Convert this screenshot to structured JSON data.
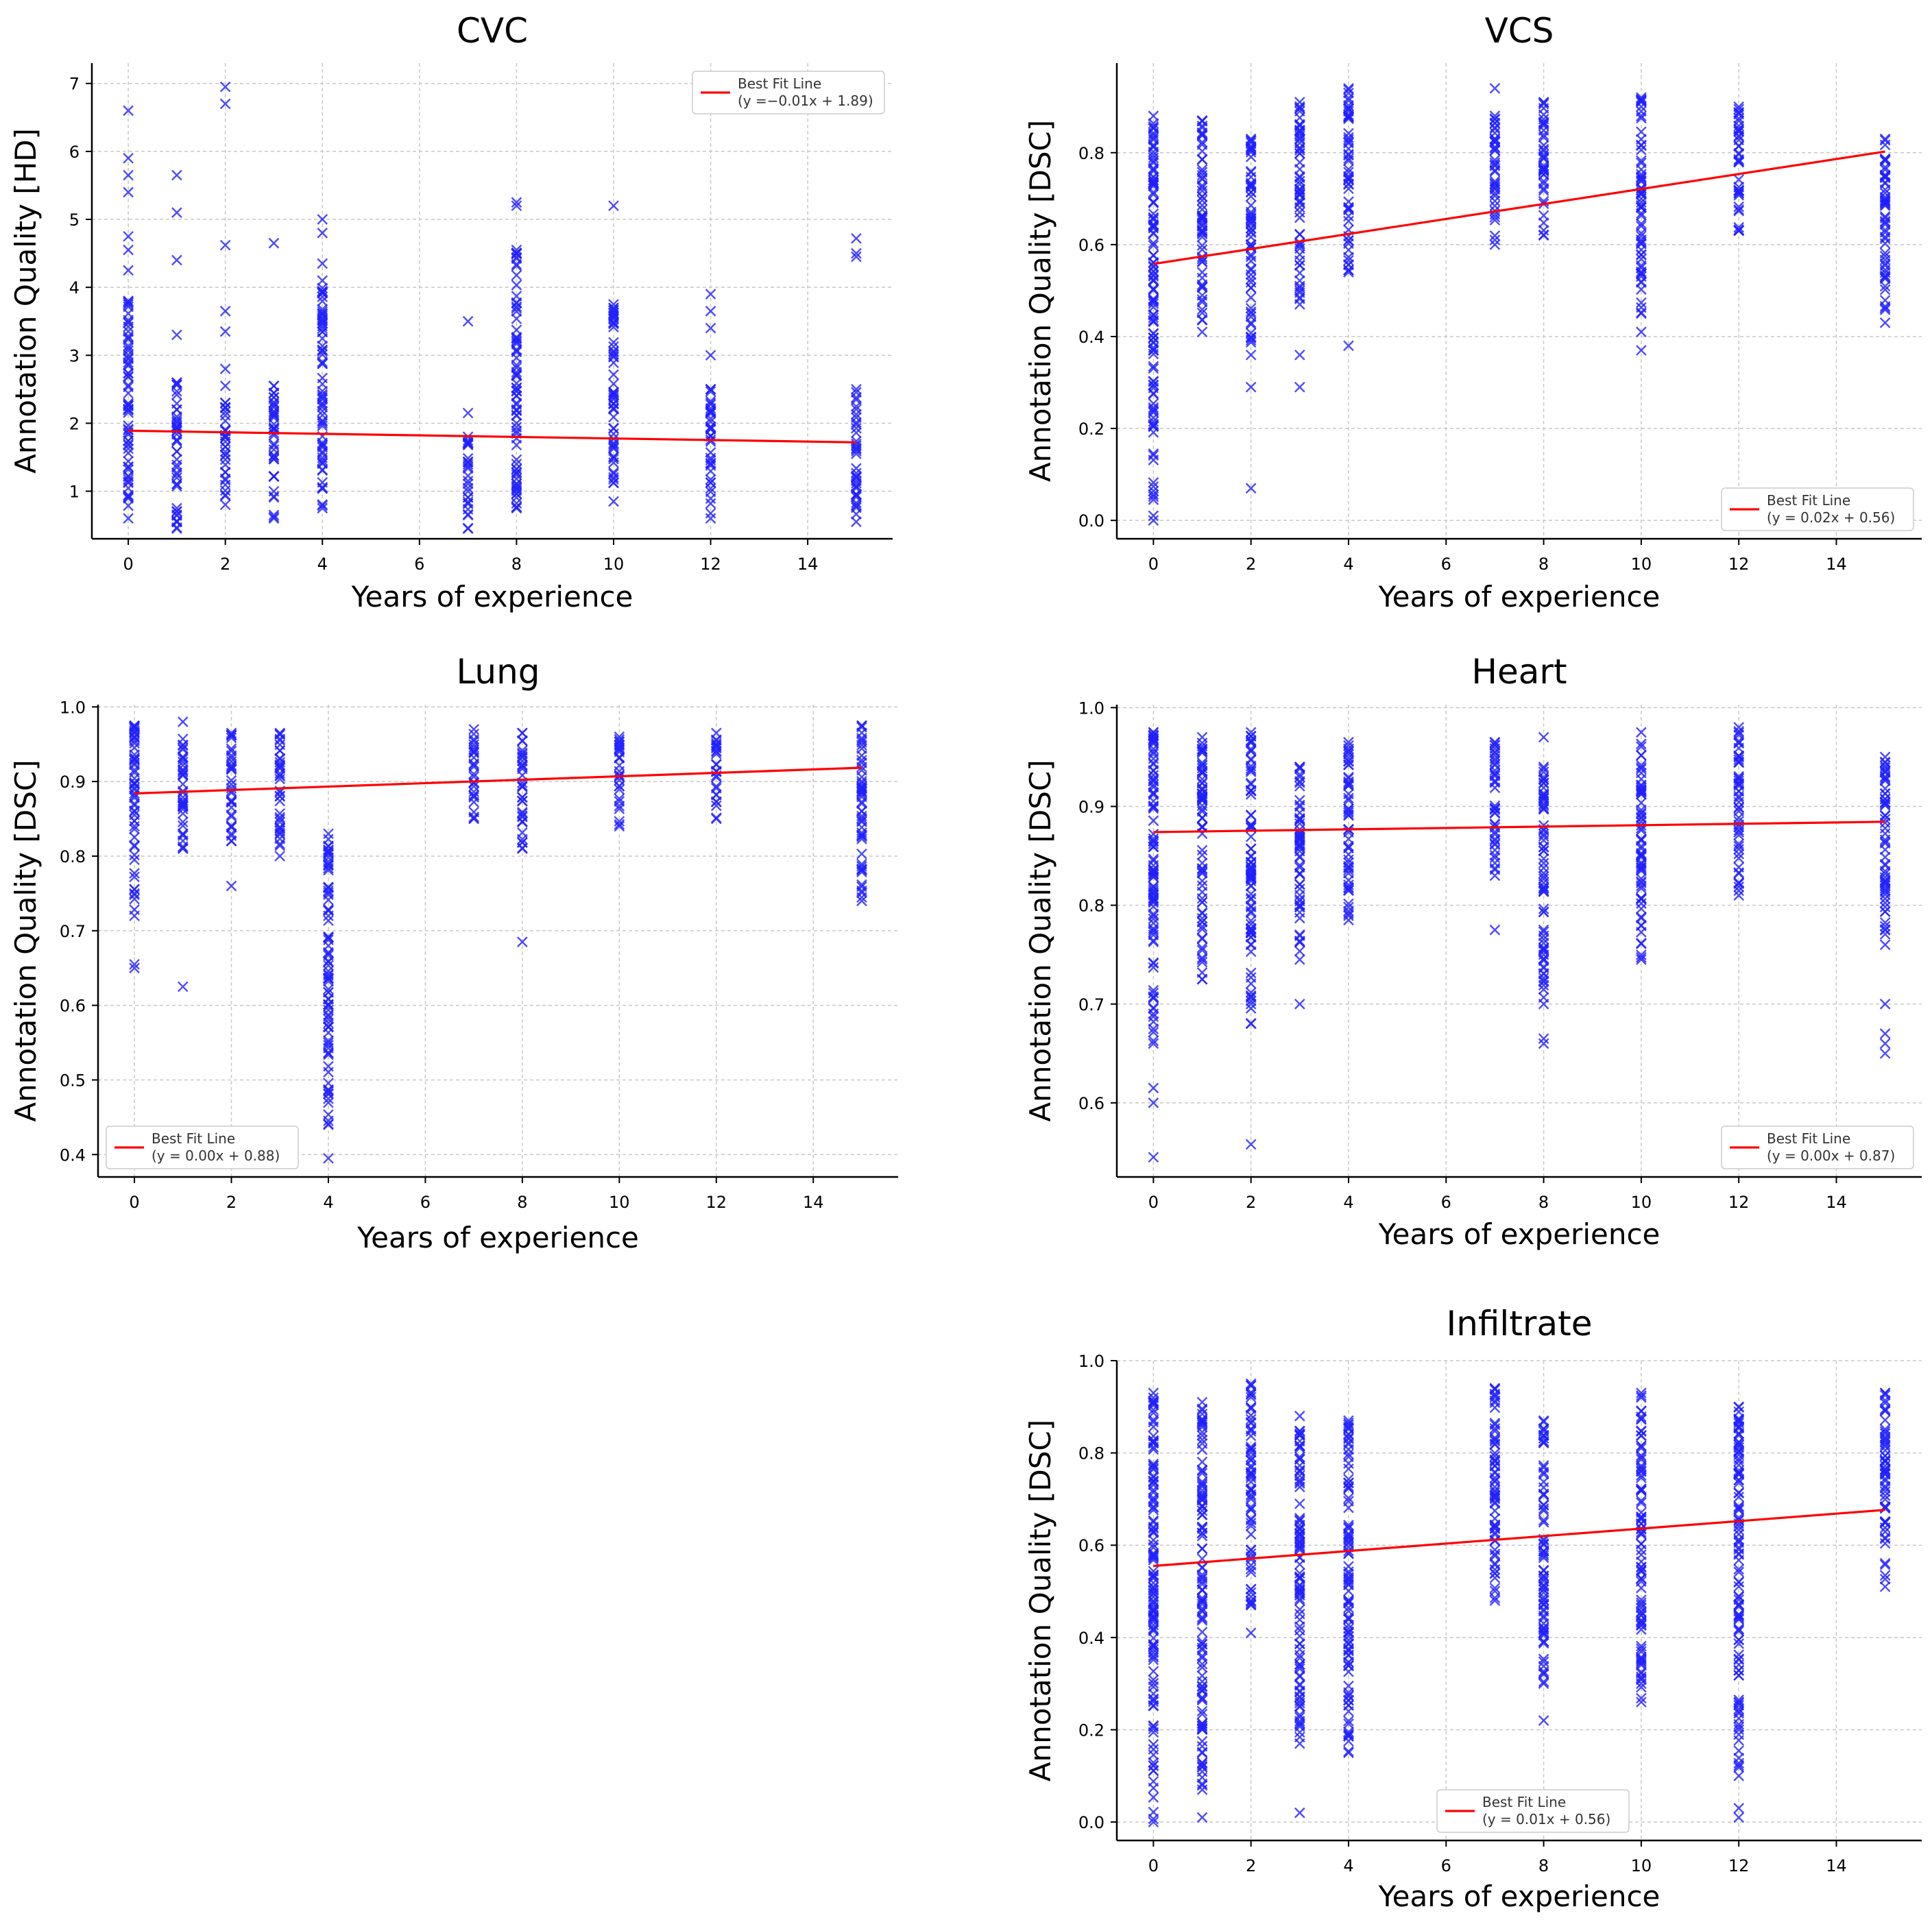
{
  "colors": {
    "points": "#1f1fff",
    "fit": "#ff0000",
    "grid": "#c8c8c8",
    "axis": "#000000"
  },
  "chart_data": [
    {
      "type": "scatter",
      "title": "CVC",
      "xlabel": "Years of experience",
      "ylabel": "Annotation Quality [HD]",
      "xlim": [
        -0.75,
        15.75
      ],
      "ylim": [
        0.3,
        7.3
      ],
      "xticks": [
        0,
        2,
        4,
        6,
        8,
        10,
        12,
        14
      ],
      "yticks": [
        1,
        2,
        3,
        4,
        5,
        6,
        7
      ],
      "legend_pos": "top-right",
      "fit": {
        "label": "Best Fit Line",
        "equation": "(y =−0.01x + 1.89)",
        "slope": -0.0114,
        "intercept": 1.89,
        "x_range": [
          0,
          15
        ]
      },
      "groups": [
        {
          "x": 0,
          "min": 0.6,
          "max": 3.8,
          "outliers": [
            4.25,
            4.55,
            4.75,
            5.4,
            5.65,
            5.9,
            6.6
          ]
        },
        {
          "x": 1,
          "min": 0.45,
          "max": 2.6,
          "outliers": [
            3.3,
            4.4,
            5.1,
            5.65
          ]
        },
        {
          "x": 2,
          "min": 0.8,
          "max": 2.3,
          "outliers": [
            2.55,
            2.8,
            3.35,
            3.65,
            4.62,
            6.7,
            6.95
          ]
        },
        {
          "x": 3,
          "min": 0.6,
          "max": 2.55,
          "outliers": [
            4.65
          ]
        },
        {
          "x": 4,
          "min": 0.75,
          "max": 4.1,
          "outliers": [
            4.35,
            4.8,
            5.0
          ]
        },
        {
          "x": 7,
          "min": 0.45,
          "max": 1.8,
          "outliers": [
            2.15,
            3.5
          ]
        },
        {
          "x": 8,
          "min": 0.75,
          "max": 4.55,
          "outliers": [
            5.2,
            5.25
          ]
        },
        {
          "x": 10,
          "min": 0.85,
          "max": 3.75,
          "outliers": [
            5.2
          ]
        },
        {
          "x": 12,
          "min": 0.6,
          "max": 2.5,
          "outliers": [
            3.0,
            3.4,
            3.65,
            3.9
          ]
        },
        {
          "x": 15,
          "min": 0.55,
          "max": 2.5,
          "outliers": [
            4.45,
            4.5,
            4.72
          ]
        }
      ]
    },
    {
      "type": "scatter",
      "title": "VCS",
      "xlabel": "Years of experience",
      "ylabel": "Annotation Quality [DSC]",
      "xlim": [
        -0.75,
        15.75
      ],
      "ylim": [
        -0.04,
        0.995
      ],
      "xticks": [
        0,
        2,
        4,
        6,
        8,
        10,
        12,
        14
      ],
      "yticks": [
        0.0,
        0.2,
        0.4,
        0.6,
        0.8
      ],
      "legend_pos": "bottom-right",
      "fit": {
        "label": "Best Fit Line",
        "equation": "(y = 0.02x + 0.56)",
        "slope": 0.0163,
        "intercept": 0.558,
        "x_range": [
          0,
          15
        ]
      },
      "groups": [
        {
          "x": 0,
          "min": 0.0,
          "max": 0.88,
          "outliers": []
        },
        {
          "x": 1,
          "min": 0.41,
          "max": 0.87,
          "outliers": []
        },
        {
          "x": 2,
          "min": 0.36,
          "max": 0.83,
          "outliers": [
            0.07,
            0.29
          ]
        },
        {
          "x": 3,
          "min": 0.47,
          "max": 0.91,
          "outliers": [
            0.29,
            0.36
          ]
        },
        {
          "x": 4,
          "min": 0.54,
          "max": 0.94,
          "outliers": [
            0.38
          ]
        },
        {
          "x": 7,
          "min": 0.6,
          "max": 0.88,
          "outliers": [
            0.94
          ]
        },
        {
          "x": 8,
          "min": 0.62,
          "max": 0.91,
          "outliers": []
        },
        {
          "x": 10,
          "min": 0.45,
          "max": 0.92,
          "outliers": [
            0.37,
            0.41
          ]
        },
        {
          "x": 12,
          "min": 0.63,
          "max": 0.9,
          "outliers": []
        },
        {
          "x": 15,
          "min": 0.43,
          "max": 0.83,
          "outliers": []
        }
      ]
    },
    {
      "type": "scatter",
      "title": "Lung",
      "xlabel": "Years of experience",
      "ylabel": "Annotation Quality [DSC]",
      "xlim": [
        -0.75,
        15.75
      ],
      "ylim": [
        0.37,
        1.003
      ],
      "xticks": [
        0,
        2,
        4,
        6,
        8,
        10,
        12,
        14
      ],
      "yticks": [
        0.4,
        0.5,
        0.6,
        0.7,
        0.8,
        0.9,
        1.0
      ],
      "legend_pos": "bottom-left",
      "fit": {
        "label": "Best Fit Line",
        "equation": "(y = 0.00x + 0.88)",
        "slope": 0.0023,
        "intercept": 0.884,
        "x_range": [
          0,
          15
        ]
      },
      "groups": [
        {
          "x": 0,
          "min": 0.72,
          "max": 0.975,
          "outliers": [
            0.65,
            0.655
          ]
        },
        {
          "x": 1,
          "min": 0.81,
          "max": 0.98,
          "outliers": [
            0.625
          ]
        },
        {
          "x": 2,
          "min": 0.82,
          "max": 0.965,
          "outliers": [
            0.76
          ]
        },
        {
          "x": 3,
          "min": 0.8,
          "max": 0.965,
          "outliers": []
        },
        {
          "x": 4,
          "min": 0.44,
          "max": 0.83,
          "outliers": [
            0.395
          ]
        },
        {
          "x": 7,
          "min": 0.85,
          "max": 0.97,
          "outliers": []
        },
        {
          "x": 8,
          "min": 0.81,
          "max": 0.965,
          "outliers": [
            0.685
          ]
        },
        {
          "x": 10,
          "min": 0.84,
          "max": 0.96,
          "outliers": []
        },
        {
          "x": 12,
          "min": 0.85,
          "max": 0.965,
          "outliers": []
        },
        {
          "x": 15,
          "min": 0.74,
          "max": 0.975,
          "outliers": []
        }
      ]
    },
    {
      "type": "scatter",
      "title": "Heart",
      "xlabel": "Years of experience",
      "ylabel": "Annotation Quality [DSC]",
      "xlim": [
        -0.75,
        15.75
      ],
      "ylim": [
        0.525,
        1.003
      ],
      "xticks": [
        0,
        2,
        4,
        6,
        8,
        10,
        12,
        14
      ],
      "yticks": [
        0.6,
        0.7,
        0.8,
        0.9,
        1.0
      ],
      "legend_pos": "bottom-right",
      "fit": {
        "label": "Best Fit Line",
        "equation": "(y = 0.00x + 0.87)",
        "slope": 0.0007,
        "intercept": 0.874,
        "x_range": [
          0,
          15
        ]
      },
      "groups": [
        {
          "x": 0,
          "min": 0.66,
          "max": 0.975,
          "outliers": [
            0.545,
            0.6,
            0.615
          ]
        },
        {
          "x": 1,
          "min": 0.725,
          "max": 0.97,
          "outliers": []
        },
        {
          "x": 2,
          "min": 0.68,
          "max": 0.975,
          "outliers": [
            0.558
          ]
        },
        {
          "x": 3,
          "min": 0.745,
          "max": 0.94,
          "outliers": [
            0.7
          ]
        },
        {
          "x": 4,
          "min": 0.785,
          "max": 0.965,
          "outliers": []
        },
        {
          "x": 7,
          "min": 0.83,
          "max": 0.965,
          "outliers": [
            0.775
          ]
        },
        {
          "x": 8,
          "min": 0.7,
          "max": 0.94,
          "outliers": [
            0.66,
            0.665,
            0.97
          ]
        },
        {
          "x": 10,
          "min": 0.745,
          "max": 0.975,
          "outliers": []
        },
        {
          "x": 12,
          "min": 0.81,
          "max": 0.98,
          "outliers": []
        },
        {
          "x": 15,
          "min": 0.76,
          "max": 0.95,
          "outliers": [
            0.65,
            0.66,
            0.67,
            0.7
          ]
        }
      ]
    },
    {
      "type": "scatter",
      "title": "Infiltrate",
      "xlabel": "Years of experience",
      "ylabel": "Annotation Quality [DSC]",
      "xlim": [
        -0.75,
        15.75
      ],
      "ylim": [
        -0.04,
        1.0
      ],
      "xticks": [
        0,
        2,
        4,
        6,
        8,
        10,
        12,
        14
      ],
      "yticks": [
        0.0,
        0.2,
        0.4,
        0.6,
        0.8,
        1.0
      ],
      "legend_pos": "bottom-center",
      "fit": {
        "label": "Best Fit Line",
        "equation": "(y = 0.01x + 0.56)",
        "slope": 0.0081,
        "intercept": 0.555,
        "x_range": [
          0,
          15
        ]
      },
      "groups": [
        {
          "x": 0,
          "min": 0.0,
          "max": 0.93,
          "outliers": []
        },
        {
          "x": 1,
          "min": 0.07,
          "max": 0.91,
          "outliers": [
            0.01
          ]
        },
        {
          "x": 2,
          "min": 0.47,
          "max": 0.95,
          "outliers": [
            0.41
          ]
        },
        {
          "x": 3,
          "min": 0.17,
          "max": 0.88,
          "outliers": [
            0.02
          ]
        },
        {
          "x": 4,
          "min": 0.15,
          "max": 0.87,
          "outliers": []
        },
        {
          "x": 7,
          "min": 0.48,
          "max": 0.94,
          "outliers": []
        },
        {
          "x": 8,
          "min": 0.3,
          "max": 0.87,
          "outliers": [
            0.22
          ]
        },
        {
          "x": 10,
          "min": 0.26,
          "max": 0.93,
          "outliers": []
        },
        {
          "x": 12,
          "min": 0.1,
          "max": 0.9,
          "outliers": [
            0.01,
            0.03
          ]
        },
        {
          "x": 15,
          "min": 0.51,
          "max": 0.93,
          "outliers": []
        }
      ]
    }
  ]
}
